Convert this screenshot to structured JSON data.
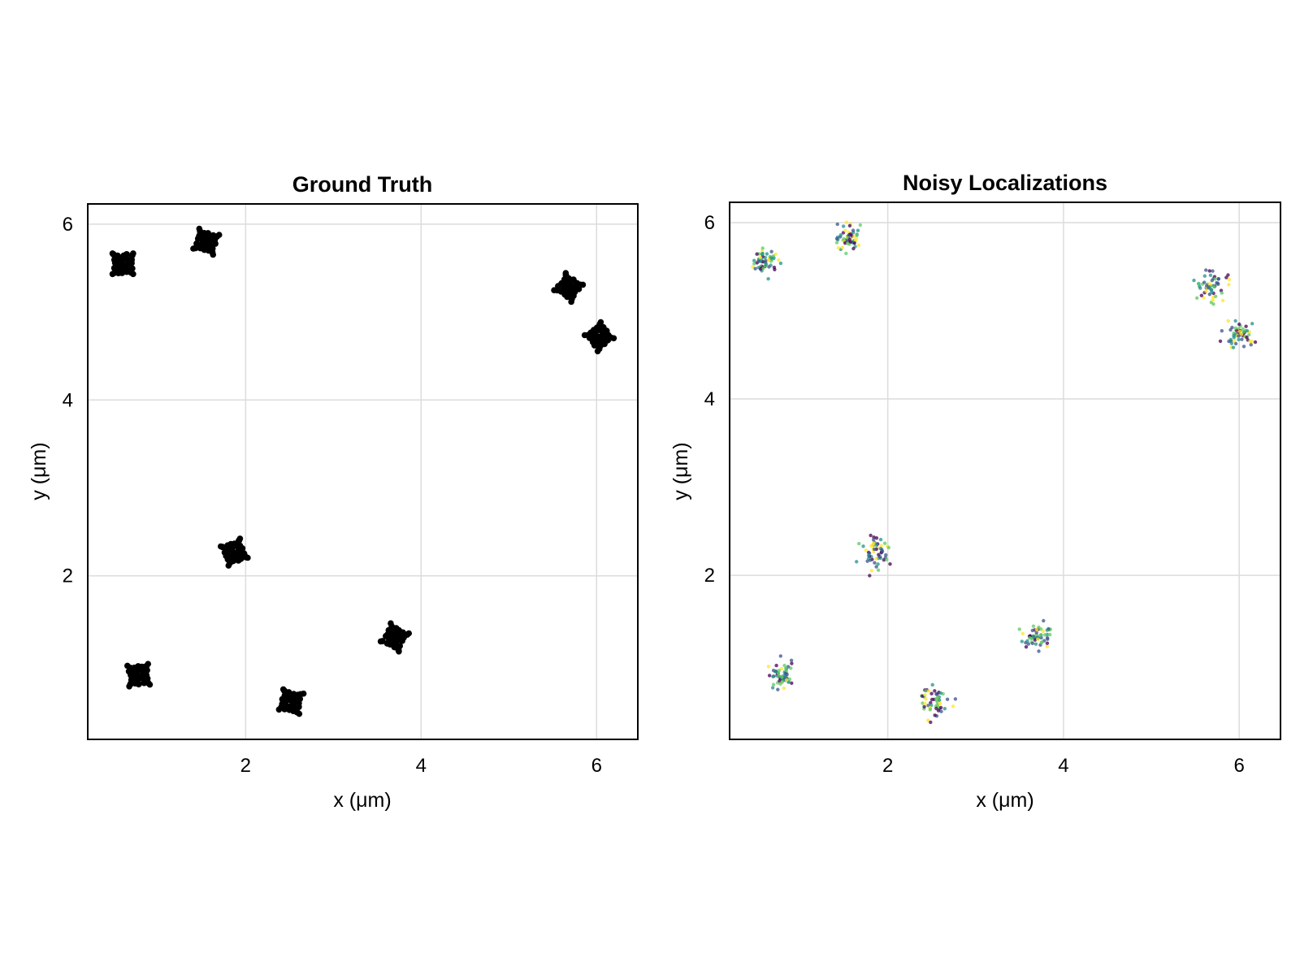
{
  "chart_data": [
    {
      "type": "scatter",
      "title": "Ground Truth",
      "xlabel": "x (μm)",
      "ylabel": "y (μm)",
      "xlim": [
        0.2,
        6.47
      ],
      "ylim": [
        0.14,
        6.23
      ],
      "xticks": [
        2,
        4,
        6
      ],
      "yticks": [
        2,
        4,
        6
      ],
      "grid": true,
      "marker_color": "#000000",
      "colormap": "none",
      "clusters": [
        {
          "x": 0.6,
          "y": 5.55
        },
        {
          "x": 1.55,
          "y": 5.8
        },
        {
          "x": 5.68,
          "y": 5.28
        },
        {
          "x": 6.03,
          "y": 4.72
        },
        {
          "x": 1.87,
          "y": 2.27
        },
        {
          "x": 0.78,
          "y": 0.87
        },
        {
          "x": 2.52,
          "y": 0.57
        },
        {
          "x": 3.7,
          "y": 1.3
        }
      ]
    },
    {
      "type": "scatter",
      "title": "Noisy Localizations",
      "xlabel": "x (μm)",
      "ylabel": "y (μm)",
      "xlim": [
        0.2,
        6.47
      ],
      "ylim": [
        0.14,
        6.23
      ],
      "xticks": [
        2,
        4,
        6
      ],
      "yticks": [
        2,
        4,
        6
      ],
      "grid": true,
      "colormap": "viridis",
      "palette": [
        "#440154",
        "#3b528b",
        "#21918c",
        "#5ec962",
        "#fde725"
      ],
      "clusters": [
        {
          "x": 0.6,
          "y": 5.55
        },
        {
          "x": 1.55,
          "y": 5.8
        },
        {
          "x": 5.68,
          "y": 5.28
        },
        {
          "x": 6.03,
          "y": 4.72
        },
        {
          "x": 1.87,
          "y": 2.27
        },
        {
          "x": 0.78,
          "y": 0.87
        },
        {
          "x": 2.52,
          "y": 0.57
        },
        {
          "x": 3.7,
          "y": 1.3
        }
      ]
    }
  ]
}
